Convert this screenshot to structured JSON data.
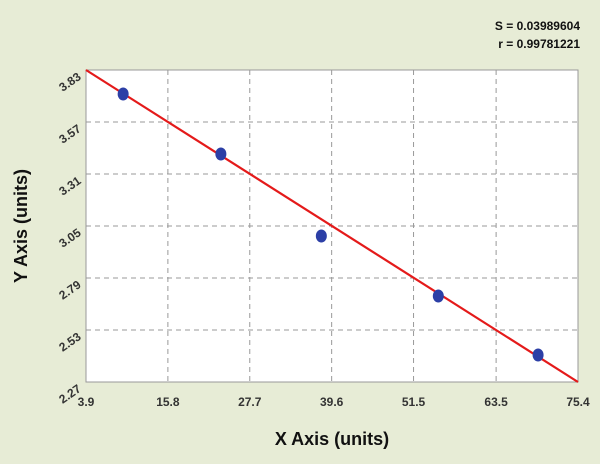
{
  "chart_data": {
    "type": "scatter",
    "annotations": [
      "S = 0.03989604",
      "r = 0.99781221"
    ],
    "x_label": "X Axis (units)",
    "y_label": "Y Axis (units)",
    "x": [
      9.3,
      23.5,
      38.1,
      55.1,
      69.6
    ],
    "values": [
      3.71,
      3.41,
      3.0,
      2.7,
      2.405
    ],
    "color": "#2c3fa6",
    "fit": {
      "x": [
        3.9,
        75.4
      ],
      "y": [
        3.83,
        2.27
      ],
      "color": "#e41a1a"
    },
    "xlim": [
      3.9,
      75.4
    ],
    "xticks": [
      3.9,
      15.8,
      27.7,
      39.6,
      51.5,
      63.5,
      75.4
    ],
    "ylim": [
      2.27,
      3.83
    ],
    "yticks": [
      2.27,
      2.53,
      2.79,
      3.05,
      3.31,
      3.57,
      3.83
    ],
    "grid": true
  }
}
